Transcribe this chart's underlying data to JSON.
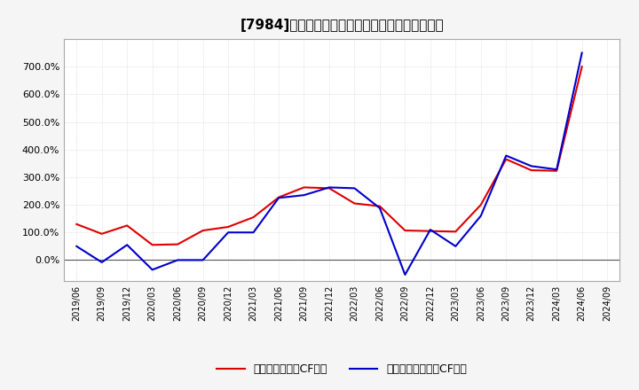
{
  "title": "[7984]　有利子負債キャッシュフロー比率の推移",
  "x_labels": [
    "2019/06",
    "2019/09",
    "2019/12",
    "2020/03",
    "2020/06",
    "2020/09",
    "2020/12",
    "2021/03",
    "2021/06",
    "2021/09",
    "2021/12",
    "2022/03",
    "2022/06",
    "2022/09",
    "2022/12",
    "2023/03",
    "2023/06",
    "2023/09",
    "2023/12",
    "2024/03",
    "2024/06",
    "2024/09"
  ],
  "operating_cf": [
    130,
    95,
    125,
    55,
    57,
    107,
    120,
    155,
    227,
    263,
    260,
    205,
    195,
    107,
    105,
    103,
    200,
    365,
    325,
    323,
    700,
    null
  ],
  "free_cf": [
    50,
    -8,
    55,
    -35,
    0,
    0,
    100,
    100,
    225,
    235,
    263,
    260,
    188,
    -53,
    110,
    50,
    160,
    378,
    340,
    328,
    750,
    null
  ],
  "ylim_min": -75,
  "ylim_max": 800,
  "yticks": [
    0,
    100,
    200,
    300,
    400,
    500,
    600,
    700
  ],
  "line_color_operating": "#dd0000",
  "line_color_free": "#0000cc",
  "legend_operating": "有利子負債営業CF比率",
  "legend_free": "有利子負債フリーCF比率",
  "bg_color": "#f5f5f5",
  "plot_bg_color": "#ffffff",
  "grid_color": "#cccccc",
  "spine_color": "#aaaaaa",
  "title_fontsize": 11,
  "tick_fontsize": 7,
  "legend_fontsize": 9
}
